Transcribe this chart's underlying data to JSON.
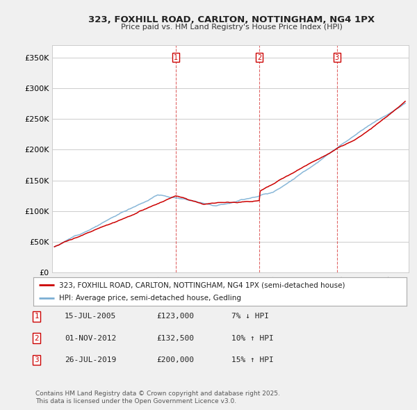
{
  "title": "323, FOXHILL ROAD, CARLTON, NOTTINGHAM, NG4 1PX",
  "subtitle": "Price paid vs. HM Land Registry's House Price Index (HPI)",
  "ylabel_ticks": [
    "£0",
    "£50K",
    "£100K",
    "£150K",
    "£200K",
    "£250K",
    "£300K",
    "£350K"
  ],
  "ytick_values": [
    0,
    50000,
    100000,
    150000,
    200000,
    250000,
    300000,
    350000
  ],
  "ylim": [
    0,
    370000
  ],
  "xlim_start": 1994.8,
  "xlim_end": 2025.8,
  "background_color": "#f0f0f0",
  "plot_bg_color": "#ffffff",
  "grid_color": "#cccccc",
  "red_line_color": "#cc0000",
  "blue_line_color": "#7bafd4",
  "sales": [
    {
      "date": 2005.54,
      "price": 123000,
      "label": "1"
    },
    {
      "date": 2012.83,
      "price": 132500,
      "label": "2"
    },
    {
      "date": 2019.56,
      "price": 200000,
      "label": "3"
    }
  ],
  "legend_entries": [
    "323, FOXHILL ROAD, CARLTON, NOTTINGHAM, NG4 1PX (semi-detached house)",
    "HPI: Average price, semi-detached house, Gedling"
  ],
  "table_rows": [
    {
      "num": "1",
      "date": "15-JUL-2005",
      "price": "£123,000",
      "hpi": "7% ↓ HPI"
    },
    {
      "num": "2",
      "date": "01-NOV-2012",
      "price": "£132,500",
      "hpi": "10% ↑ HPI"
    },
    {
      "num": "3",
      "date": "26-JUL-2019",
      "price": "£200,000",
      "hpi": "15% ↑ HPI"
    }
  ],
  "footnote": "Contains HM Land Registry data © Crown copyright and database right 2025.\nThis data is licensed under the Open Government Licence v3.0."
}
